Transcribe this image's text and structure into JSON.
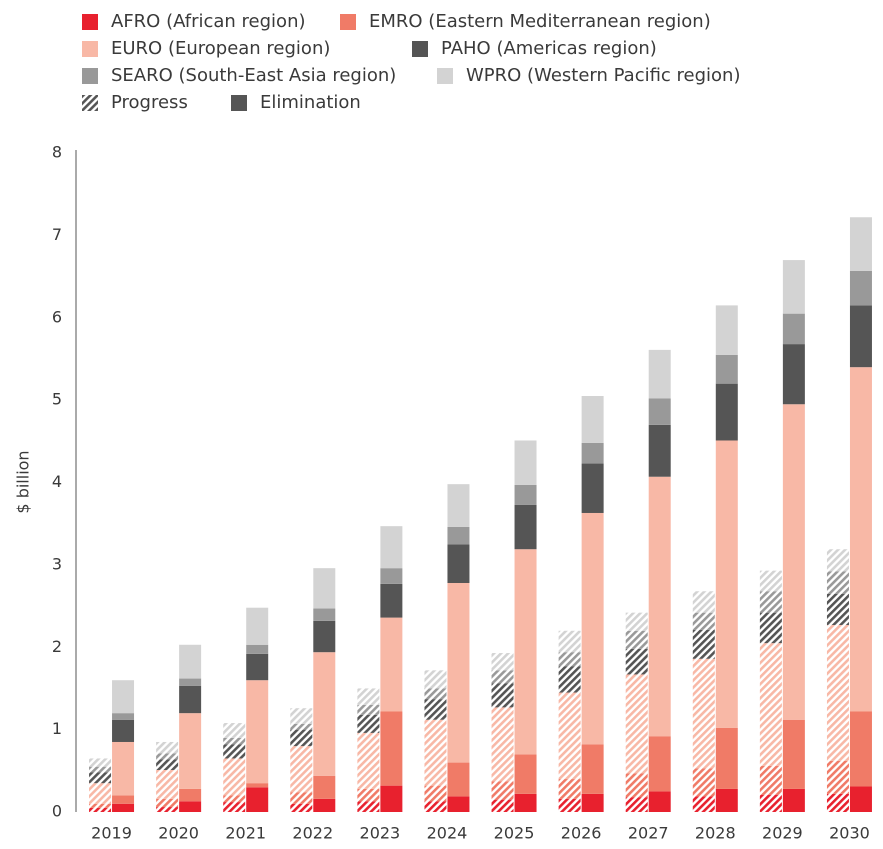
{
  "chart_data": {
    "type": "grouped_stacked_bar",
    "y_label": "$ billion",
    "categories": [
      "2019",
      "2020",
      "2021",
      "2022",
      "2023",
      "2024",
      "2025",
      "2026",
      "2027",
      "2028",
      "2029",
      "2030"
    ],
    "ylim": [
      0,
      8
    ],
    "yticks": [
      0,
      1,
      2,
      3,
      4,
      5,
      6,
      7,
      8
    ],
    "series": [
      {
        "name": "AFRO (African region)",
        "color": "#e8212e"
      },
      {
        "name": "EMRO (Eastern Mediterranean region)",
        "color": "#f07b67"
      },
      {
        "name": "EURO (European region)",
        "color": "#f8b8a6"
      },
      {
        "name": "PAHO (Americas region)",
        "color": "#555555"
      },
      {
        "name": "SEARO (South-East Asia region)",
        "color": "#999999"
      },
      {
        "name": "WPRO (Western Pacific region)",
        "color": "#d3d3d3"
      }
    ],
    "groups": [
      {
        "name": "Progress",
        "hatched": true,
        "color": "#555555",
        "series_values": [
          [
            0.05,
            0.06,
            0.12,
            0.1,
            0.13,
            0.13,
            0.15,
            0.16,
            0.18,
            0.19,
            0.21,
            0.22
          ],
          [
            0.05,
            0.1,
            0.08,
            0.14,
            0.15,
            0.19,
            0.22,
            0.24,
            0.29,
            0.34,
            0.35,
            0.4
          ],
          [
            0.25,
            0.35,
            0.45,
            0.56,
            0.68,
            0.8,
            0.9,
            1.05,
            1.2,
            1.33,
            1.49,
            1.65
          ],
          [
            0.13,
            0.13,
            0.17,
            0.2,
            0.22,
            0.25,
            0.29,
            0.32,
            0.31,
            0.35,
            0.37,
            0.38
          ],
          [
            0.07,
            0.07,
            0.08,
            0.07,
            0.12,
            0.13,
            0.16,
            0.17,
            0.22,
            0.21,
            0.26,
            0.27
          ],
          [
            0.1,
            0.14,
            0.18,
            0.19,
            0.2,
            0.22,
            0.21,
            0.26,
            0.22,
            0.26,
            0.25,
            0.27
          ]
        ]
      },
      {
        "name": "Elimination",
        "hatched": false,
        "color": "#555555",
        "series_values": [
          [
            0.1,
            0.13,
            0.3,
            0.16,
            0.32,
            0.19,
            0.22,
            0.22,
            0.25,
            0.28,
            0.28,
            0.31
          ],
          [
            0.1,
            0.15,
            0.05,
            0.28,
            0.9,
            0.41,
            0.48,
            0.6,
            0.67,
            0.74,
            0.84,
            0.91
          ],
          [
            0.65,
            0.92,
            1.25,
            1.5,
            1.14,
            2.18,
            2.49,
            2.81,
            3.15,
            3.49,
            3.83,
            4.18
          ],
          [
            0.27,
            0.33,
            0.32,
            0.38,
            0.41,
            0.47,
            0.54,
            0.6,
            0.63,
            0.69,
            0.73,
            0.75
          ],
          [
            0.08,
            0.09,
            0.11,
            0.15,
            0.19,
            0.21,
            0.24,
            0.25,
            0.32,
            0.35,
            0.37,
            0.42
          ],
          [
            0.4,
            0.41,
            0.45,
            0.49,
            0.51,
            0.52,
            0.54,
            0.57,
            0.59,
            0.6,
            0.65,
            0.65
          ]
        ]
      }
    ]
  }
}
